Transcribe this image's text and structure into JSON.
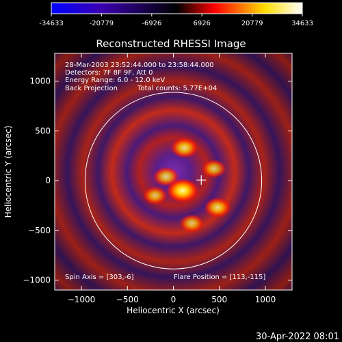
{
  "colorbar": {
    "ticks": [
      "-34633",
      "-20779",
      "-6926",
      "6926",
      "20779",
      "34633"
    ],
    "min": -34633,
    "max": 34633,
    "colors": [
      "#0000ff",
      "#3a00b0",
      "#000000",
      "#ff0000",
      "#ffdd00",
      "#ffffff"
    ]
  },
  "chart_data": {
    "type": "heatmap",
    "title": "Reconstructed RHESSI Image",
    "xlabel": "Heliocentric X (arcsec)",
    "ylabel": "Heliocentric Y (arcsec)",
    "xlim": [
      -1290,
      1290
    ],
    "ylim": [
      -1100,
      1280
    ],
    "x_ticks": [
      -1000,
      -500,
      0,
      500,
      1000
    ],
    "y_ticks": [
      -1000,
      -500,
      0,
      500,
      1000
    ],
    "x_tick_labels": [
      "−1000",
      "−500",
      "0",
      "500",
      "1000"
    ],
    "y_tick_labels": [
      "−1000",
      "−500",
      "0",
      "500",
      "1000"
    ],
    "solar_limb_radius": 960,
    "flare_marker": {
      "x": 303,
      "y": 6
    },
    "annotations": {
      "time_range": "28-Mar-2003 23:52:44.000 to 23:58:44.000",
      "detectors": "Detectors: 7F 8F 9F, Att 0",
      "energy": "Energy Range: 6.0 - 12.0 keV",
      "method": "Back Projection",
      "counts": "Total counts: 5.77E+04",
      "spin_axis": "Spin Axis = [303,-6]",
      "flare_position": "Flare Position = [113,-115]"
    },
    "hot_spots": [
      {
        "x": 100,
        "y": -100,
        "intensity": 34633
      },
      {
        "x": 120,
        "y": 330,
        "intensity": 22000
      },
      {
        "x": -80,
        "y": 40,
        "intensity": 18000
      },
      {
        "x": 480,
        "y": -270,
        "intensity": 20000
      },
      {
        "x": 440,
        "y": 120,
        "intensity": 15000
      },
      {
        "x": -200,
        "y": -150,
        "intensity": 14000
      },
      {
        "x": 200,
        "y": -430,
        "intensity": 14000
      }
    ]
  },
  "footer": {
    "timestamp": "30-Apr-2022 08:01"
  }
}
